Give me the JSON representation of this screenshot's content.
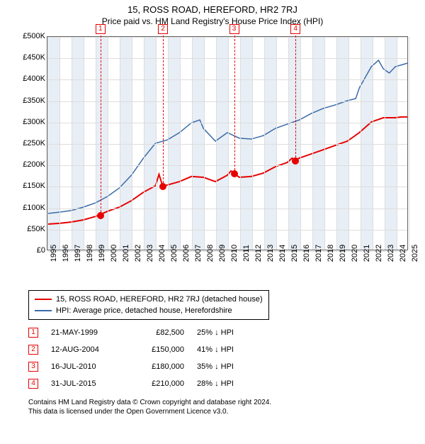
{
  "title": "15, ROSS ROAD, HEREFORD, HR2 7RJ",
  "subtitle": "Price paid vs. HM Land Registry's House Price Index (HPI)",
  "chart": {
    "type": "line",
    "background_color": "#ffffff",
    "band_color": "#e8eef5",
    "grid_color": "#dddddd",
    "border_color": "#666666",
    "x_years": [
      1995,
      1996,
      1997,
      1998,
      1999,
      2000,
      2001,
      2002,
      2003,
      2004,
      2005,
      2006,
      2007,
      2008,
      2009,
      2010,
      2011,
      2012,
      2013,
      2014,
      2015,
      2016,
      2017,
      2018,
      2019,
      2020,
      2021,
      2022,
      2023,
      2024,
      2025
    ],
    "xlabel_fontsize": 11,
    "y_min": 0,
    "y_max": 500000,
    "y_step": 50000,
    "y_labels": [
      "£0",
      "£50K",
      "£100K",
      "£150K",
      "£200K",
      "£250K",
      "£300K",
      "£350K",
      "£400K",
      "£450K",
      "£500K"
    ],
    "ylabel_fontsize": 11,
    "series": [
      {
        "name": "property",
        "color": "#e60000",
        "stroke_width": 2,
        "data": [
          [
            1995.0,
            60000
          ],
          [
            1996.0,
            62000
          ],
          [
            1997.0,
            65000
          ],
          [
            1998.0,
            70000
          ],
          [
            1999.0,
            78000
          ],
          [
            1999.4,
            82500
          ],
          [
            2000.0,
            90000
          ],
          [
            2001.0,
            100000
          ],
          [
            2002.0,
            115000
          ],
          [
            2003.0,
            135000
          ],
          [
            2004.0,
            150000
          ],
          [
            2004.3,
            177000
          ],
          [
            2004.6,
            150000
          ],
          [
            2005.0,
            152000
          ],
          [
            2006.0,
            160000
          ],
          [
            2007.0,
            172000
          ],
          [
            2008.0,
            170000
          ],
          [
            2009.0,
            160000
          ],
          [
            2010.0,
            175000
          ],
          [
            2010.3,
            185000
          ],
          [
            2010.5,
            180000
          ],
          [
            2011.0,
            170000
          ],
          [
            2012.0,
            172000
          ],
          [
            2013.0,
            180000
          ],
          [
            2014.0,
            195000
          ],
          [
            2015.0,
            205000
          ],
          [
            2015.4,
            215000
          ],
          [
            2015.6,
            210000
          ],
          [
            2016.0,
            215000
          ],
          [
            2017.0,
            225000
          ],
          [
            2018.0,
            235000
          ],
          [
            2019.0,
            245000
          ],
          [
            2020.0,
            255000
          ],
          [
            2021.0,
            275000
          ],
          [
            2022.0,
            300000
          ],
          [
            2023.0,
            310000
          ],
          [
            2024.0,
            310000
          ],
          [
            2024.5,
            312000
          ],
          [
            2025.0,
            312000
          ]
        ]
      },
      {
        "name": "hpi",
        "color": "#3a6aa8",
        "stroke_width": 1.5,
        "data": [
          [
            1995.0,
            85000
          ],
          [
            1996.0,
            88000
          ],
          [
            1997.0,
            92000
          ],
          [
            1998.0,
            100000
          ],
          [
            1999.0,
            110000
          ],
          [
            2000.0,
            125000
          ],
          [
            2001.0,
            145000
          ],
          [
            2002.0,
            175000
          ],
          [
            2003.0,
            215000
          ],
          [
            2004.0,
            250000
          ],
          [
            2005.0,
            258000
          ],
          [
            2006.0,
            275000
          ],
          [
            2007.0,
            298000
          ],
          [
            2007.7,
            305000
          ],
          [
            2008.0,
            285000
          ],
          [
            2009.0,
            255000
          ],
          [
            2010.0,
            275000
          ],
          [
            2011.0,
            262000
          ],
          [
            2012.0,
            260000
          ],
          [
            2013.0,
            268000
          ],
          [
            2014.0,
            285000
          ],
          [
            2015.0,
            295000
          ],
          [
            2016.0,
            305000
          ],
          [
            2017.0,
            320000
          ],
          [
            2018.0,
            332000
          ],
          [
            2019.0,
            340000
          ],
          [
            2020.0,
            350000
          ],
          [
            2020.7,
            355000
          ],
          [
            2021.0,
            380000
          ],
          [
            2022.0,
            430000
          ],
          [
            2022.6,
            445000
          ],
          [
            2023.0,
            425000
          ],
          [
            2023.5,
            415000
          ],
          [
            2024.0,
            430000
          ],
          [
            2025.0,
            438000
          ]
        ]
      }
    ],
    "markers": [
      {
        "n": "1",
        "year": 1999.4,
        "price": 82500,
        "color": "#e60000"
      },
      {
        "n": "2",
        "year": 2004.6,
        "price": 150000,
        "color": "#e60000"
      },
      {
        "n": "3",
        "year": 2010.5,
        "price": 180000,
        "color": "#e60000"
      },
      {
        "n": "4",
        "year": 2015.6,
        "price": 210000,
        "color": "#e60000"
      }
    ]
  },
  "legend": {
    "items": [
      {
        "color": "#e60000",
        "width": 2,
        "label": "15, ROSS ROAD, HEREFORD, HR2 7RJ (detached house)"
      },
      {
        "color": "#3a6aa8",
        "width": 1.5,
        "label": "HPI: Average price, detached house, Herefordshire"
      }
    ]
  },
  "sales": [
    {
      "n": "1",
      "date": "21-MAY-1999",
      "price": "£82,500",
      "pct": "25% ↓ HPI"
    },
    {
      "n": "2",
      "date": "12-AUG-2004",
      "price": "£150,000",
      "pct": "41% ↓ HPI"
    },
    {
      "n": "3",
      "date": "16-JUL-2010",
      "price": "£180,000",
      "pct": "35% ↓ HPI"
    },
    {
      "n": "4",
      "date": "31-JUL-2015",
      "price": "£210,000",
      "pct": "28% ↓ HPI"
    }
  ],
  "sales_marker_color": "#e60000",
  "footnote": {
    "line1": "Contains HM Land Registry data © Crown copyright and database right 2024.",
    "line2": "This data is licensed under the Open Government Licence v3.0."
  }
}
